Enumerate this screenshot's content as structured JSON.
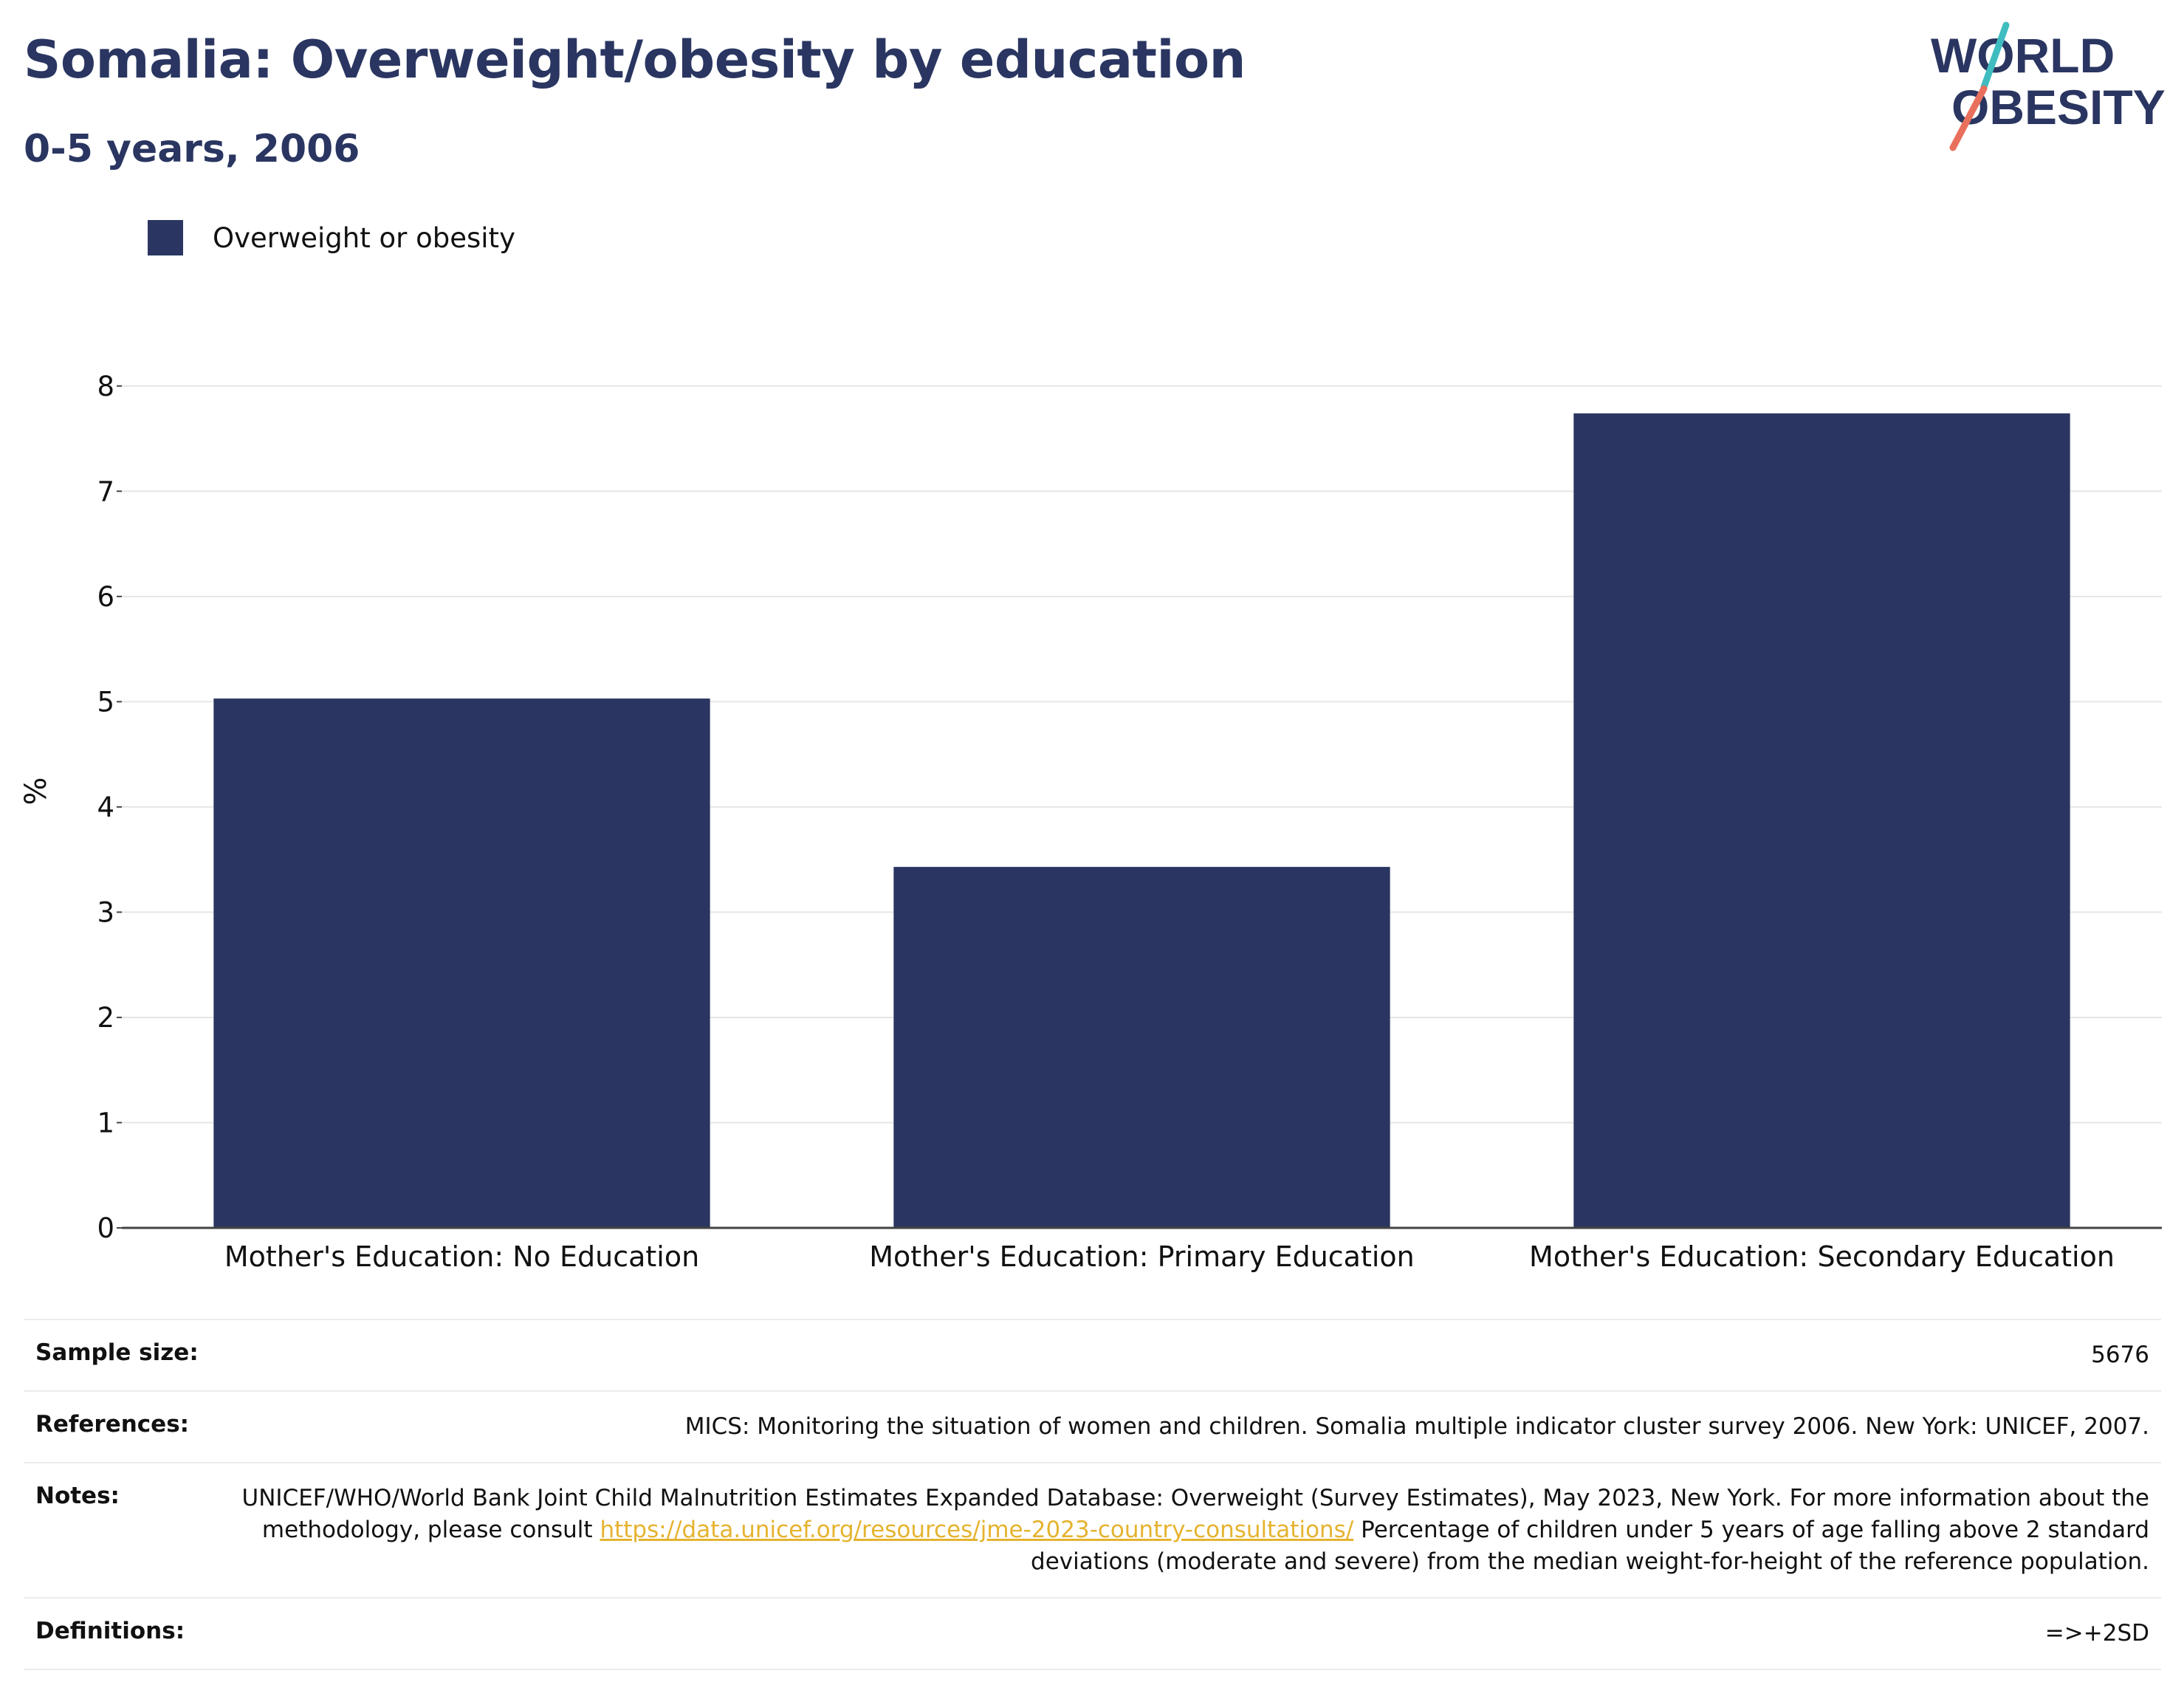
{
  "title": "Somalia: Overweight/obesity by education",
  "subtitle": "0-5 years, 2006",
  "logo": {
    "line1": "WORLD",
    "line2": "OBESITY"
  },
  "colors": {
    "bar": "#2a3661",
    "title": "#2a3661",
    "link": "#e5b32f",
    "logo_red": "#e8705c",
    "logo_teal": "#3fbcc0"
  },
  "chart_data": {
    "type": "bar",
    "categories": [
      "Mother's Education: No Education",
      "Mother's Education: Primary Education",
      "Mother's Education: Secondary Education"
    ],
    "series": [
      {
        "name": "Overweight or obesity",
        "values": [
          5.03,
          3.43,
          7.74
        ]
      }
    ],
    "ylabel": "%",
    "yticks": [
      0,
      1,
      2,
      3,
      4,
      5,
      6,
      7,
      8
    ],
    "ylim": [
      0,
      8.3
    ],
    "grid": true,
    "legend": "top-left"
  },
  "meta": {
    "sample_size_label": "Sample size:",
    "sample_size": "5676",
    "references_label": "References:",
    "references": "MICS: Monitoring the situation of women and children. Somalia multiple indicator cluster survey 2006. New York: UNICEF, 2007.",
    "notes_label": "Notes:",
    "notes_part1": "UNICEF/WHO/World Bank Joint Child Malnutrition Estimates Expanded Database: Overweight (Survey Estimates), May 2023, New York. For more information about the methodology, please consult",
    "notes_link": "https://data.unicef.org/resources/jme-2023-country-consultations/",
    "notes_part2": "Percentage of children under 5 years of age falling above 2 standard deviations (moderate and severe) from the median weight-for-height of the reference population.",
    "definitions_label": "Definitions:",
    "definitions": "=>+2SD"
  }
}
